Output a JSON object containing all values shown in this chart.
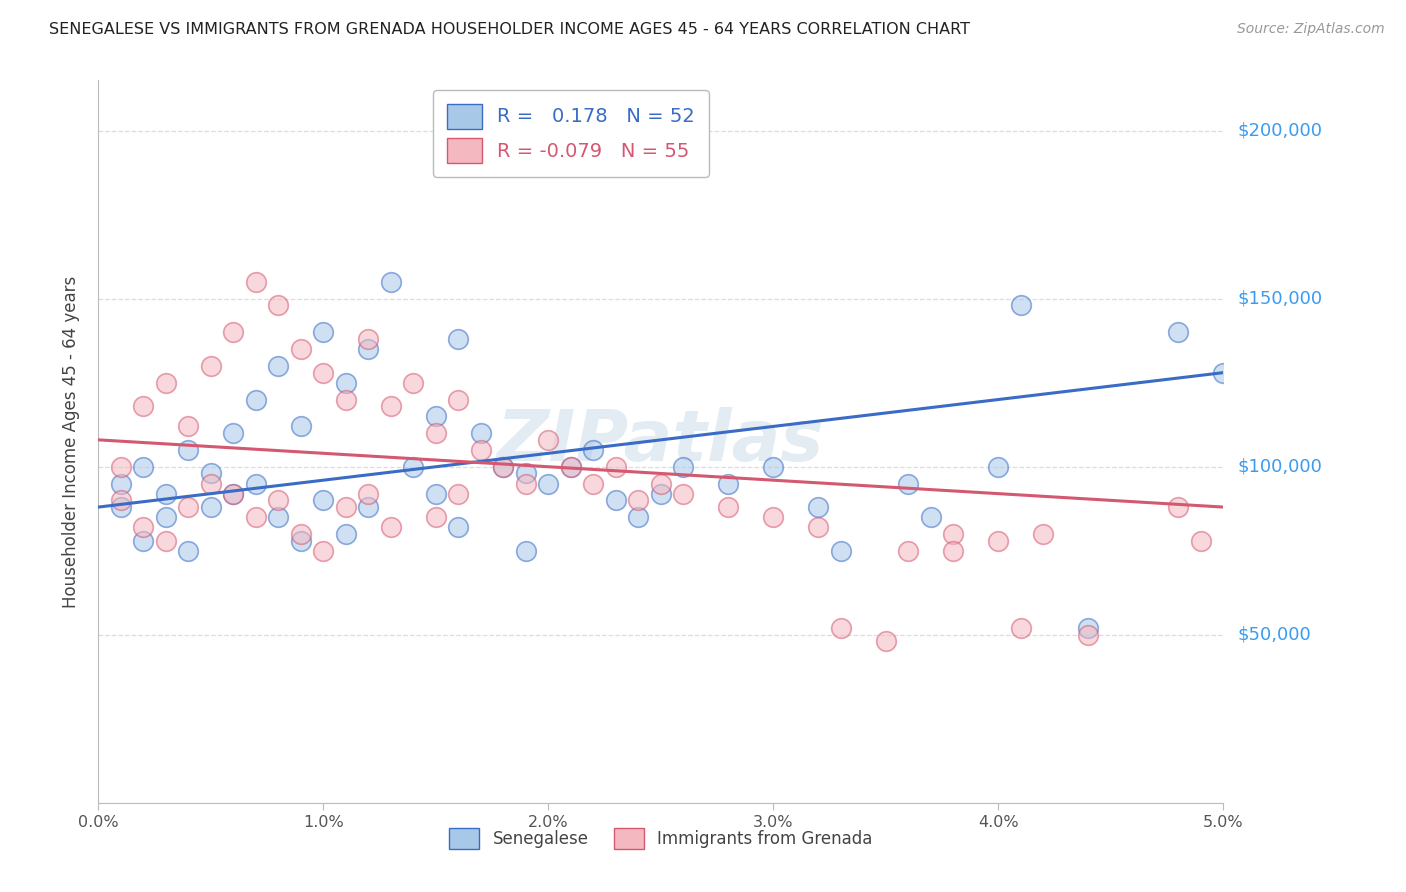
{
  "title": "SENEGALESE VS IMMIGRANTS FROM GRENADA HOUSEHOLDER INCOME AGES 45 - 64 YEARS CORRELATION CHART",
  "source": "Source: ZipAtlas.com",
  "ylabel": "Householder Income Ages 45 - 64 years",
  "legend1_label": "R =   0.178   N = 52",
  "legend2_label": "R = -0.079   N = 55",
  "legend1_face_color": "#a8c8e8",
  "legend2_face_color": "#f4b8c0",
  "line1_color": "#3a6cc6",
  "line2_color": "#d45870",
  "watermark": "ZIPatlas",
  "blue_points_x": [
    0.001,
    0.001,
    0.002,
    0.002,
    0.003,
    0.003,
    0.004,
    0.004,
    0.005,
    0.005,
    0.006,
    0.006,
    0.007,
    0.007,
    0.008,
    0.008,
    0.009,
    0.009,
    0.01,
    0.01,
    0.011,
    0.011,
    0.012,
    0.012,
    0.013,
    0.014,
    0.015,
    0.015,
    0.016,
    0.016,
    0.017,
    0.018,
    0.019,
    0.019,
    0.02,
    0.021,
    0.022,
    0.023,
    0.024,
    0.025,
    0.026,
    0.028,
    0.03,
    0.032,
    0.033,
    0.036,
    0.037,
    0.04,
    0.041,
    0.044,
    0.048,
    0.05
  ],
  "blue_points_y": [
    95000,
    88000,
    100000,
    78000,
    92000,
    85000,
    105000,
    75000,
    98000,
    88000,
    110000,
    92000,
    120000,
    95000,
    130000,
    85000,
    112000,
    78000,
    140000,
    90000,
    125000,
    80000,
    135000,
    88000,
    155000,
    100000,
    115000,
    92000,
    138000,
    82000,
    110000,
    100000,
    98000,
    75000,
    95000,
    100000,
    105000,
    90000,
    85000,
    92000,
    100000,
    95000,
    100000,
    88000,
    75000,
    95000,
    85000,
    100000,
    148000,
    52000,
    140000,
    128000
  ],
  "pink_points_x": [
    0.001,
    0.001,
    0.002,
    0.002,
    0.003,
    0.003,
    0.004,
    0.004,
    0.005,
    0.005,
    0.006,
    0.006,
    0.007,
    0.007,
    0.008,
    0.008,
    0.009,
    0.009,
    0.01,
    0.01,
    0.011,
    0.011,
    0.012,
    0.012,
    0.013,
    0.013,
    0.014,
    0.015,
    0.015,
    0.016,
    0.016,
    0.017,
    0.018,
    0.019,
    0.02,
    0.021,
    0.022,
    0.023,
    0.024,
    0.025,
    0.026,
    0.028,
    0.03,
    0.032,
    0.033,
    0.035,
    0.036,
    0.038,
    0.038,
    0.04,
    0.041,
    0.042,
    0.044,
    0.048,
    0.049
  ],
  "pink_points_y": [
    100000,
    90000,
    118000,
    82000,
    125000,
    78000,
    112000,
    88000,
    130000,
    95000,
    140000,
    92000,
    155000,
    85000,
    148000,
    90000,
    135000,
    80000,
    128000,
    75000,
    120000,
    88000,
    138000,
    92000,
    118000,
    82000,
    125000,
    110000,
    85000,
    120000,
    92000,
    105000,
    100000,
    95000,
    108000,
    100000,
    95000,
    100000,
    90000,
    95000,
    92000,
    88000,
    85000,
    82000,
    52000,
    48000,
    75000,
    80000,
    75000,
    78000,
    52000,
    80000,
    50000,
    88000,
    78000
  ],
  "blue_line_x0": 0.0,
  "blue_line_y0": 88000,
  "blue_line_x1": 0.05,
  "blue_line_y1": 128000,
  "pink_line_x0": 0.0,
  "pink_line_y0": 108000,
  "pink_line_x1": 0.05,
  "pink_line_y1": 88000,
  "xmin": 0.0,
  "xmax": 0.05,
  "ymin": 0,
  "ymax": 215000,
  "yticks": [
    0,
    50000,
    100000,
    150000,
    200000
  ],
  "ytick_labels": [
    "",
    "$50,000",
    "$100,000",
    "$150,000",
    "$200,000"
  ],
  "xticks": [
    0.0,
    0.01,
    0.02,
    0.03,
    0.04,
    0.05
  ],
  "xtick_labels": [
    "0.0%",
    "1.0%",
    "2.0%",
    "3.0%",
    "4.0%",
    "5.0%"
  ],
  "background_color": "#ffffff",
  "grid_color": "#dddddd",
  "ytick_label_color": "#3a9cf0",
  "xtick_label_color": "#555555"
}
